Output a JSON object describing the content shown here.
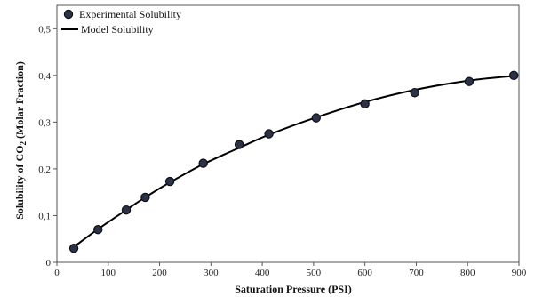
{
  "chart_data": {
    "type": "scatter",
    "title": "",
    "xlabel": "Saturation Pressure (PSI)",
    "ylabel": {
      "pre": "Solubility of CO",
      "sub": "2",
      "post": " (Molar Fraction)"
    },
    "xlim": [
      0,
      900
    ],
    "ylim": [
      0,
      0.55
    ],
    "xticks": [
      0,
      100,
      200,
      300,
      400,
      500,
      600,
      700,
      800,
      900
    ],
    "xtick_labels": [
      "0",
      "100",
      "200",
      "300",
      "400",
      "500",
      "600",
      "700",
      "800",
      "900"
    ],
    "yticks": [
      0,
      0.1,
      0.2,
      0.3,
      0.4,
      0.5
    ],
    "ytick_labels": [
      "0",
      "0,1",
      "0,2",
      "0,3",
      "0,4",
      "0,5"
    ],
    "grid": false,
    "legend_position": "top-left",
    "series": [
      {
        "name": "Experimental Solubility",
        "kind": "markers",
        "color": "#2b3245",
        "x": [
          33,
          80,
          135,
          172,
          220,
          285,
          355,
          413,
          505,
          600,
          697,
          803,
          890
        ],
        "y": [
          0.03,
          0.07,
          0.112,
          0.139,
          0.173,
          0.212,
          0.252,
          0.275,
          0.309,
          0.339,
          0.363,
          0.387,
          0.4
        ]
      },
      {
        "name": "Model Solubility",
        "kind": "line",
        "color": "#000000",
        "x": [
          33,
          80,
          135,
          172,
          220,
          285,
          355,
          413,
          505,
          600,
          697,
          803,
          890
        ],
        "y": [
          0.033,
          0.071,
          0.112,
          0.139,
          0.171,
          0.21,
          0.245,
          0.273,
          0.31,
          0.343,
          0.369,
          0.389,
          0.399
        ]
      }
    ]
  }
}
